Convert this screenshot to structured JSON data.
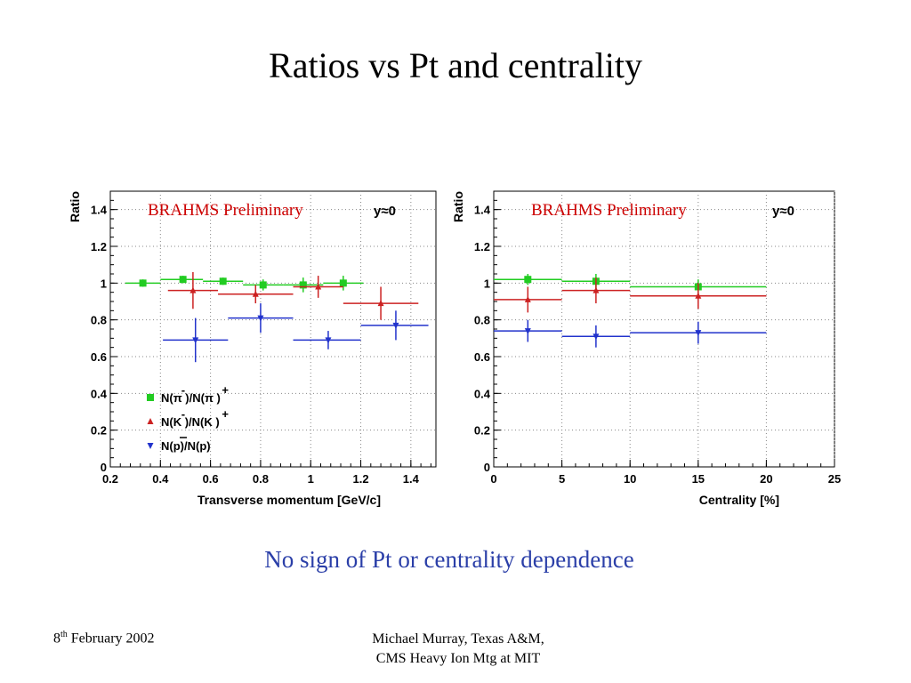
{
  "slide": {
    "title": "Ratios vs Pt and centrality",
    "conclusion": "No sign of Pt or centrality dependence",
    "footer_date_day": "8",
    "footer_date_suffix": "th",
    "footer_date_rest": " February 2002",
    "footer_author": "Michael Murray, Texas A&M,",
    "footer_event": "CMS Heavy Ion Mtg at MIT"
  },
  "colors": {
    "pion": "#22cc22",
    "kaon": "#cc2222",
    "proton": "#2233cc",
    "grid": "#888888",
    "conclusion": "#2b3fa8",
    "prelim": "#cc0000"
  },
  "chart_data": [
    {
      "type": "scatter",
      "annotation": "BRAHMS Preliminary",
      "rapidity": "y≈0",
      "xlabel": "Transverse momentum [GeV/c]",
      "ylabel": "Ratio",
      "xlim": [
        0.2,
        1.5
      ],
      "ylim": [
        0,
        1.5
      ],
      "xticks": [
        0.2,
        0.4,
        0.6,
        0.8,
        1,
        1.2,
        1.4
      ],
      "yticks": [
        0,
        0.2,
        0.4,
        0.6,
        0.8,
        1,
        1.2,
        1.4
      ],
      "grid": true,
      "legend_position": "bottom-left",
      "series": [
        {
          "name": "N(π⁻)/N(π⁺)",
          "legend_main": "N(π )/N(π )",
          "legend_sup1": "-",
          "legend_sup2": "+",
          "key": "pion",
          "marker": "square",
          "points": [
            {
              "x": 0.33,
              "y": 1.0,
              "xerr": [
                0.26,
                0.4
              ],
              "yerr": 0.02
            },
            {
              "x": 0.49,
              "y": 1.02,
              "xerr": [
                0.4,
                0.57
              ],
              "yerr": 0.02
            },
            {
              "x": 0.65,
              "y": 1.01,
              "xerr": [
                0.57,
                0.73
              ],
              "yerr": 0.02
            },
            {
              "x": 0.81,
              "y": 0.99,
              "xerr": [
                0.73,
                0.89
              ],
              "yerr": 0.03
            },
            {
              "x": 0.97,
              "y": 0.99,
              "xerr": [
                0.89,
                1.05
              ],
              "yerr": 0.04
            },
            {
              "x": 1.13,
              "y": 1.0,
              "xerr": [
                1.05,
                1.21
              ],
              "yerr": 0.04
            }
          ]
        },
        {
          "name": "N(K⁻)/N(K⁺)",
          "legend_main": "N(K )/N(K )",
          "legend_sup1": "-",
          "legend_sup2": "+",
          "key": "kaon",
          "marker": "triangle",
          "points": [
            {
              "x": 0.53,
              "y": 0.96,
              "xerr": [
                0.43,
                0.63
              ],
              "yerr": 0.1
            },
            {
              "x": 0.78,
              "y": 0.94,
              "xerr": [
                0.63,
                0.93
              ],
              "yerr": 0.05
            },
            {
              "x": 1.03,
              "y": 0.98,
              "xerr": [
                0.93,
                1.13
              ],
              "yerr": 0.06
            },
            {
              "x": 1.28,
              "y": 0.89,
              "xerr": [
                1.13,
                1.43
              ],
              "yerr": 0.09
            }
          ]
        },
        {
          "name": "N(p̄)/N(p)",
          "legend_main": "N(p)/N(p)",
          "key": "proton",
          "marker": "triangle-down",
          "points": [
            {
              "x": 0.54,
              "y": 0.69,
              "xerr": [
                0.41,
                0.67
              ],
              "yerr": 0.12
            },
            {
              "x": 0.8,
              "y": 0.81,
              "xerr": [
                0.67,
                0.93
              ],
              "yerr": 0.08
            },
            {
              "x": 1.07,
              "y": 0.69,
              "xerr": [
                0.93,
                1.2
              ],
              "yerr": 0.05
            },
            {
              "x": 1.34,
              "y": 0.77,
              "xerr": [
                1.2,
                1.47
              ],
              "yerr": 0.08
            }
          ]
        }
      ]
    },
    {
      "type": "scatter",
      "annotation": "BRAHMS Preliminary",
      "rapidity": "y≈0",
      "xlabel": "Centrality [%]",
      "ylabel": "Ratio",
      "xlim": [
        0,
        25
      ],
      "ylim": [
        0,
        1.5
      ],
      "xticks": [
        0,
        5,
        10,
        15,
        20,
        25
      ],
      "yticks": [
        0,
        0.2,
        0.4,
        0.6,
        0.8,
        1,
        1.2,
        1.4
      ],
      "grid": true,
      "series": [
        {
          "key": "pion",
          "marker": "square",
          "points": [
            {
              "x": 2.5,
              "y": 1.02,
              "xerr": [
                0,
                5
              ],
              "yerr": 0.03
            },
            {
              "x": 7.5,
              "y": 1.01,
              "xerr": [
                5,
                10
              ],
              "yerr": 0.04
            },
            {
              "x": 15,
              "y": 0.98,
              "xerr": [
                10,
                20
              ],
              "yerr": 0.04
            }
          ]
        },
        {
          "key": "kaon",
          "marker": "triangle",
          "points": [
            {
              "x": 2.5,
              "y": 0.91,
              "xerr": [
                0,
                5
              ],
              "yerr": 0.07
            },
            {
              "x": 7.5,
              "y": 0.96,
              "xerr": [
                5,
                10
              ],
              "yerr": 0.07
            },
            {
              "x": 15,
              "y": 0.93,
              "xerr": [
                10,
                20
              ],
              "yerr": 0.07
            }
          ]
        },
        {
          "key": "proton",
          "marker": "triangle-down",
          "points": [
            {
              "x": 2.5,
              "y": 0.74,
              "xerr": [
                0,
                5
              ],
              "yerr": 0.06
            },
            {
              "x": 7.5,
              "y": 0.71,
              "xerr": [
                5,
                10
              ],
              "yerr": 0.06
            },
            {
              "x": 15,
              "y": 0.73,
              "xerr": [
                10,
                20
              ],
              "yerr": 0.06
            }
          ]
        }
      ]
    }
  ]
}
